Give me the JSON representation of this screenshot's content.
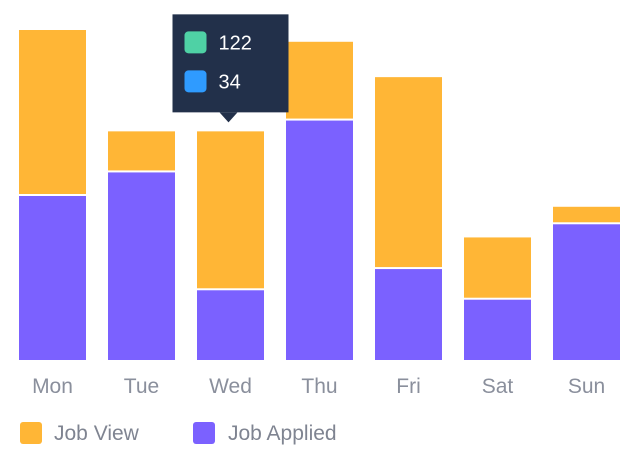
{
  "chart_data": {
    "type": "bar",
    "stacked": true,
    "categories": [
      "Mon",
      "Tue",
      "Wed",
      "Thu",
      "Fri",
      "Sat",
      "Sun"
    ],
    "series": [
      {
        "name": "Job Applied",
        "color": "#7B61FF",
        "values": [
          70,
          80,
          30,
          102,
          39,
          26,
          58
        ]
      },
      {
        "name": "Job View",
        "color": "#FFB636",
        "values": [
          70,
          17,
          67,
          33,
          81,
          26,
          7
        ]
      }
    ],
    "ylim": [
      0,
      140
    ],
    "grid": false,
    "legend_position": "bottom-left",
    "tooltip": {
      "category": "Wed",
      "items": [
        {
          "value": "122",
          "color": "#4FD1A5"
        },
        {
          "value": "34",
          "color": "#2F9BFF"
        }
      ]
    }
  },
  "legend": {
    "items": [
      {
        "label": "Job View",
        "color": "#FFB636"
      },
      {
        "label": "Job Applied",
        "color": "#7B61FF"
      }
    ]
  }
}
